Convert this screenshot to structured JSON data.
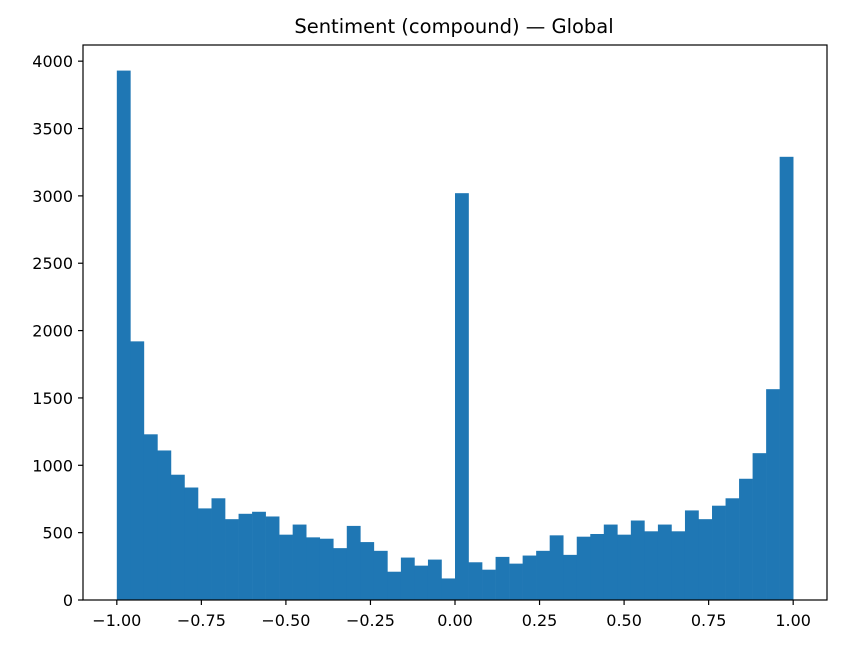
{
  "chart_data": {
    "type": "bar",
    "title": "Sentiment (compound) — Global",
    "xlabel": "",
    "ylabel": "",
    "xlim": [
      -1.1,
      1.1
    ],
    "ylim": [
      0,
      4120
    ],
    "bar_color": "#1f77b4",
    "bin_start": -1.0,
    "bin_width": 0.04,
    "values": [
      3930,
      1920,
      1230,
      1110,
      930,
      835,
      680,
      755,
      600,
      640,
      655,
      620,
      485,
      560,
      465,
      455,
      385,
      550,
      430,
      365,
      210,
      315,
      255,
      300,
      160,
      3020,
      280,
      225,
      320,
      270,
      330,
      365,
      480,
      335,
      470,
      490,
      560,
      485,
      590,
      510,
      560,
      510,
      665,
      600,
      700,
      755,
      900,
      1090,
      1565,
      3290
    ],
    "x_ticks": [
      -1.0,
      -0.75,
      -0.5,
      -0.25,
      0.0,
      0.25,
      0.5,
      0.75,
      1.0
    ],
    "x_tick_labels": [
      "−1.00",
      "−0.75",
      "−0.50",
      "−0.25",
      "0.00",
      "0.25",
      "0.50",
      "0.75",
      "1.00"
    ],
    "y_ticks": [
      0,
      500,
      1000,
      1500,
      2000,
      2500,
      3000,
      3500,
      4000
    ],
    "y_tick_labels": [
      "0",
      "500",
      "1000",
      "1500",
      "2000",
      "2500",
      "3000",
      "3500",
      "4000"
    ],
    "grid": false,
    "legend": "none"
  }
}
